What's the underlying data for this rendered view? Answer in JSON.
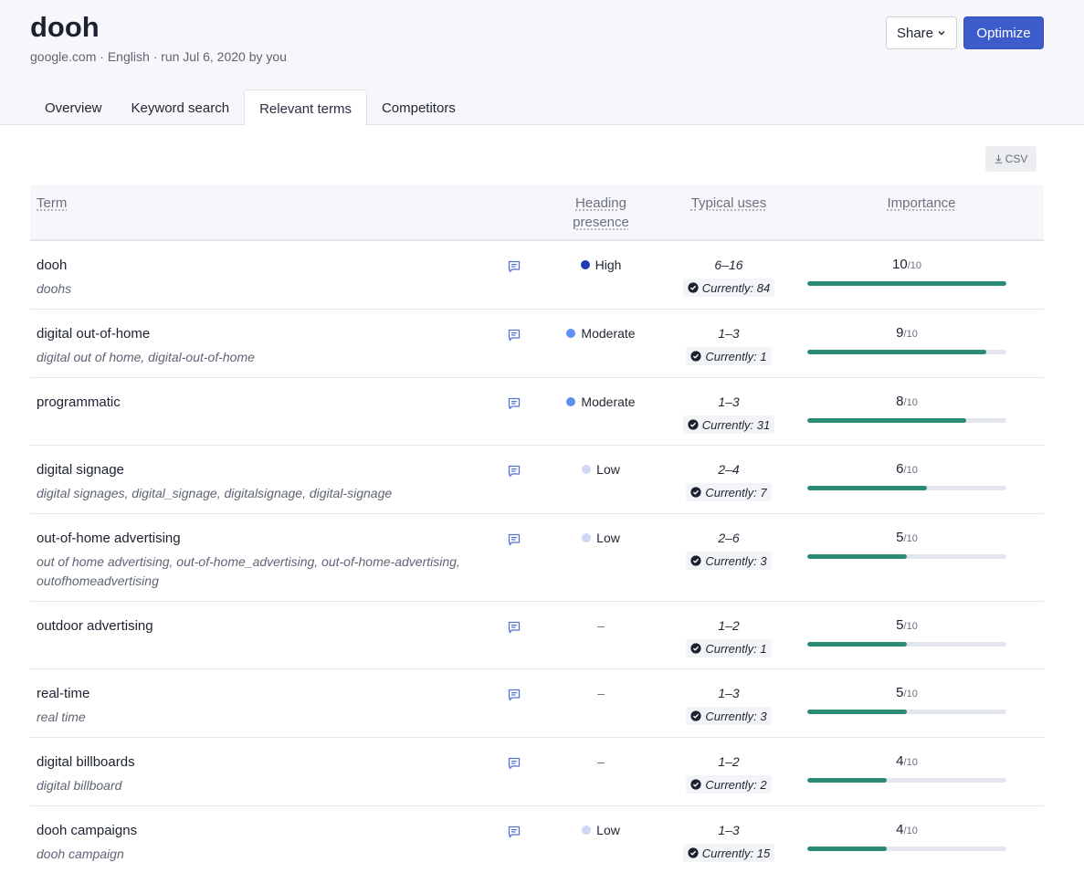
{
  "header": {
    "title": "dooh",
    "subtitle": "google.com · English · run Jul 6, 2020 by you",
    "share_label": "Share",
    "optimize_label": "Optimize"
  },
  "tabs": [
    {
      "label": "Overview",
      "active": false
    },
    {
      "label": "Keyword search",
      "active": false
    },
    {
      "label": "Relevant terms",
      "active": true
    },
    {
      "label": "Competitors",
      "active": false
    }
  ],
  "csv_label": "CSV",
  "table": {
    "columns": {
      "term": "Term",
      "heading": "Heading presence",
      "uses": "Typical uses",
      "importance": "Importance"
    },
    "rows": [
      {
        "term": "dooh",
        "variants": "doohs",
        "presence": "High",
        "presence_color": "#1f3bb3",
        "uses": "6–16",
        "current": "Currently: 84",
        "score": "10",
        "score_max": "/10",
        "importance_fraction": 1.0
      },
      {
        "term": "digital out-of-home",
        "variants": "digital out of home, digital-out-of-home",
        "presence": "Moderate",
        "presence_color": "#5f8ff0",
        "uses": "1–3",
        "current": "Currently: 1",
        "score": "9",
        "score_max": "/10",
        "importance_fraction": 0.9
      },
      {
        "term": "programmatic",
        "variants": "",
        "presence": "Moderate",
        "presence_color": "#5f8ff0",
        "uses": "1–3",
        "current": "Currently: 31",
        "score": "8",
        "score_max": "/10",
        "importance_fraction": 0.8
      },
      {
        "term": "digital signage",
        "variants": "digital signages, digital_signage, digitalsignage, digital-signage",
        "presence": "Low",
        "presence_color": "#cdd8f2",
        "uses": "2–4",
        "current": "Currently: 7",
        "score": "6",
        "score_max": "/10",
        "importance_fraction": 0.6
      },
      {
        "term": "out-of-home advertising",
        "variants": "out of home advertising, out-of-home_advertising, out-of-home-advertising, outofhomeadvertising",
        "presence": "Low",
        "presence_color": "#cdd8f2",
        "uses": "2–6",
        "current": "Currently: 3",
        "score": "5",
        "score_max": "/10",
        "importance_fraction": 0.5
      },
      {
        "term": "outdoor advertising",
        "variants": "",
        "presence": "–",
        "presence_color": "",
        "uses": "1–2",
        "current": "Currently: 1",
        "score": "5",
        "score_max": "/10",
        "importance_fraction": 0.5
      },
      {
        "term": "real-time",
        "variants": "real time",
        "presence": "–",
        "presence_color": "",
        "uses": "1–3",
        "current": "Currently: 3",
        "score": "5",
        "score_max": "/10",
        "importance_fraction": 0.5
      },
      {
        "term": "digital billboards",
        "variants": "digital billboard",
        "presence": "–",
        "presence_color": "",
        "uses": "1–2",
        "current": "Currently: 2",
        "score": "4",
        "score_max": "/10",
        "importance_fraction": 0.4
      },
      {
        "term": "dooh campaigns",
        "variants": "dooh campaign",
        "presence": "Low",
        "presence_color": "#cdd8f2",
        "uses": "1–3",
        "current": "Currently: 15",
        "score": "4",
        "score_max": "/10",
        "importance_fraction": 0.4
      }
    ]
  },
  "icons": {
    "share_chevron": "chevron-down-icon",
    "csv": "download-icon",
    "note": "comment-icon",
    "check": "check-circle-icon"
  }
}
